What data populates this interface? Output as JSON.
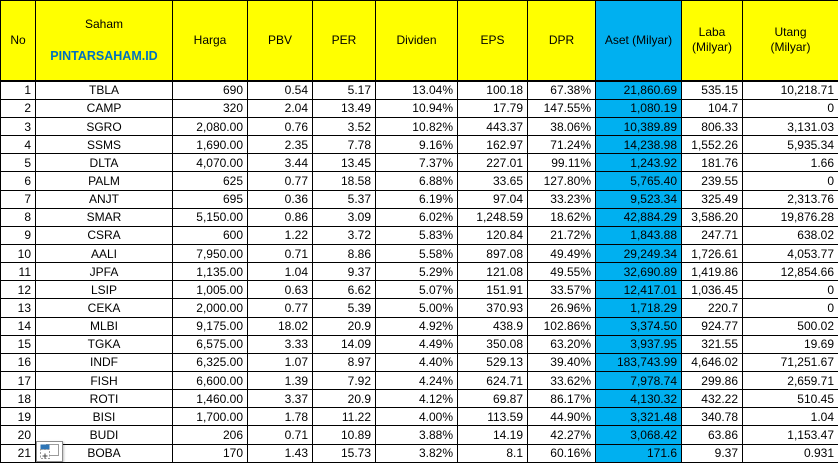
{
  "colors": {
    "header_fill": "#FFFF00",
    "aset_fill": "#00B0F0",
    "brand_text": "#0070C0",
    "grid": "#000000",
    "text": "#000000",
    "sheet_bg": "#FFFFFF"
  },
  "icons": {
    "paste_options": "Excel paste options smart tag (clipboard with plus)"
  },
  "table": {
    "brand": "PINTARSAHAM.ID",
    "columns": [
      {
        "key": "no",
        "label": "No",
        "align": "right"
      },
      {
        "key": "saham",
        "label": "Saham",
        "align": "center"
      },
      {
        "key": "harga",
        "label": "Harga",
        "align": "right"
      },
      {
        "key": "pbv",
        "label": "PBV",
        "align": "right"
      },
      {
        "key": "per",
        "label": "PER",
        "align": "right"
      },
      {
        "key": "dividen",
        "label": "Dividen",
        "align": "right"
      },
      {
        "key": "eps",
        "label": "EPS",
        "align": "right"
      },
      {
        "key": "dpr",
        "label": "DPR",
        "align": "right"
      },
      {
        "key": "aset",
        "label": "Aset (Milyar)",
        "align": "right",
        "fill": "#00B0F0"
      },
      {
        "key": "laba",
        "label": "Laba\n(Milyar)",
        "align": "right"
      },
      {
        "key": "utang",
        "label": "Utang\n(Milyar)",
        "align": "right"
      }
    ],
    "rows": [
      {
        "no": "1",
        "saham": "TBLA",
        "harga": "690",
        "pbv": "0.54",
        "per": "5.17",
        "dividen": "13.04%",
        "eps": "100.18",
        "dpr": "67.38%",
        "aset": "21,860.69",
        "laba": "535.15",
        "utang": "10,218.71"
      },
      {
        "no": "2",
        "saham": "CAMP",
        "harga": "320",
        "pbv": "2.04",
        "per": "13.49",
        "dividen": "10.94%",
        "eps": "17.79",
        "dpr": "147.55%",
        "aset": "1,080.19",
        "laba": "104.7",
        "utang": "0"
      },
      {
        "no": "3",
        "saham": "SGRO",
        "harga": "2,080.00",
        "pbv": "0.76",
        "per": "3.52",
        "dividen": "10.82%",
        "eps": "443.37",
        "dpr": "38.06%",
        "aset": "10,389.89",
        "laba": "806.33",
        "utang": "3,131.03"
      },
      {
        "no": "4",
        "saham": "SSMS",
        "harga": "1,690.00",
        "pbv": "2.35",
        "per": "7.78",
        "dividen": "9.16%",
        "eps": "162.97",
        "dpr": "71.24%",
        "aset": "14,238.98",
        "laba": "1,552.26",
        "utang": "5,935.34"
      },
      {
        "no": "5",
        "saham": "DLTA",
        "harga": "4,070.00",
        "pbv": "3.44",
        "per": "13.45",
        "dividen": "7.37%",
        "eps": "227.01",
        "dpr": "99.11%",
        "aset": "1,243.92",
        "laba": "181.76",
        "utang": "1.66"
      },
      {
        "no": "6",
        "saham": "PALM",
        "harga": "625",
        "pbv": "0.77",
        "per": "18.58",
        "dividen": "6.88%",
        "eps": "33.65",
        "dpr": "127.80%",
        "aset": "5,765.40",
        "laba": "239.55",
        "utang": "0"
      },
      {
        "no": "7",
        "saham": "ANJT",
        "harga": "695",
        "pbv": "0.36",
        "per": "5.37",
        "dividen": "6.19%",
        "eps": "97.04",
        "dpr": "33.23%",
        "aset": "9,523.34",
        "laba": "325.49",
        "utang": "2,313.76"
      },
      {
        "no": "8",
        "saham": "SMAR",
        "harga": "5,150.00",
        "pbv": "0.86",
        "per": "3.09",
        "dividen": "6.02%",
        "eps": "1,248.59",
        "dpr": "18.62%",
        "aset": "42,884.29",
        "laba": "3,586.20",
        "utang": "19,876.28"
      },
      {
        "no": "9",
        "saham": "CSRA",
        "harga": "600",
        "pbv": "1.22",
        "per": "3.72",
        "dividen": "5.83%",
        "eps": "120.84",
        "dpr": "21.72%",
        "aset": "1,843.88",
        "laba": "247.71",
        "utang": "638.02"
      },
      {
        "no": "10",
        "saham": "AALI",
        "harga": "7,950.00",
        "pbv": "0.71",
        "per": "8.86",
        "dividen": "5.58%",
        "eps": "897.08",
        "dpr": "49.49%",
        "aset": "29,249.34",
        "laba": "1,726.61",
        "utang": "4,053.77"
      },
      {
        "no": "11",
        "saham": "JPFA",
        "harga": "1,135.00",
        "pbv": "1.04",
        "per": "9.37",
        "dividen": "5.29%",
        "eps": "121.08",
        "dpr": "49.55%",
        "aset": "32,690.89",
        "laba": "1,419.86",
        "utang": "12,854.66"
      },
      {
        "no": "12",
        "saham": "LSIP",
        "harga": "1,005.00",
        "pbv": "0.63",
        "per": "6.62",
        "dividen": "5.07%",
        "eps": "151.91",
        "dpr": "33.57%",
        "aset": "12,417.01",
        "laba": "1,036.45",
        "utang": "0"
      },
      {
        "no": "13",
        "saham": "CEKA",
        "harga": "2,000.00",
        "pbv": "0.77",
        "per": "5.39",
        "dividen": "5.00%",
        "eps": "370.93",
        "dpr": "26.96%",
        "aset": "1,718.29",
        "laba": "220.7",
        "utang": "0"
      },
      {
        "no": "14",
        "saham": "MLBI",
        "harga": "9,175.00",
        "pbv": "18.02",
        "per": "20.9",
        "dividen": "4.92%",
        "eps": "438.9",
        "dpr": "102.86%",
        "aset": "3,374.50",
        "laba": "924.77",
        "utang": "500.02"
      },
      {
        "no": "15",
        "saham": "TGKA",
        "harga": "6,575.00",
        "pbv": "3.33",
        "per": "14.09",
        "dividen": "4.49%",
        "eps": "350.08",
        "dpr": "63.20%",
        "aset": "3,937.95",
        "laba": "321.55",
        "utang": "19.69"
      },
      {
        "no": "16",
        "saham": "INDF",
        "harga": "6,325.00",
        "pbv": "1.07",
        "per": "8.97",
        "dividen": "4.40%",
        "eps": "529.13",
        "dpr": "39.40%",
        "aset": "183,743.99",
        "laba": "4,646.02",
        "utang": "71,251.67"
      },
      {
        "no": "17",
        "saham": "FISH",
        "harga": "6,600.00",
        "pbv": "1.39",
        "per": "7.92",
        "dividen": "4.24%",
        "eps": "624.71",
        "dpr": "33.62%",
        "aset": "7,978.74",
        "laba": "299.86",
        "utang": "2,659.71"
      },
      {
        "no": "18",
        "saham": "ROTI",
        "harga": "1,460.00",
        "pbv": "3.37",
        "per": "20.9",
        "dividen": "4.12%",
        "eps": "69.87",
        "dpr": "86.17%",
        "aset": "4,130.32",
        "laba": "432.22",
        "utang": "510.45"
      },
      {
        "no": "19",
        "saham": "BISI",
        "harga": "1,700.00",
        "pbv": "1.78",
        "per": "11.22",
        "dividen": "4.00%",
        "eps": "113.59",
        "dpr": "44.90%",
        "aset": "3,321.48",
        "laba": "340.78",
        "utang": "1.04"
      },
      {
        "no": "20",
        "saham": "BUDI",
        "harga": "206",
        "pbv": "0.71",
        "per": "10.89",
        "dividen": "3.88%",
        "eps": "14.19",
        "dpr": "42.27%",
        "aset": "3,068.42",
        "laba": "63.86",
        "utang": "1,153.47"
      },
      {
        "no": "21",
        "saham": "BOBA",
        "harga": "170",
        "pbv": "1.43",
        "per": "15.73",
        "dividen": "3.82%",
        "eps": "8.1",
        "dpr": "60.16%",
        "aset": "171.6",
        "laba": "9.37",
        "utang": "0.931"
      }
    ]
  }
}
